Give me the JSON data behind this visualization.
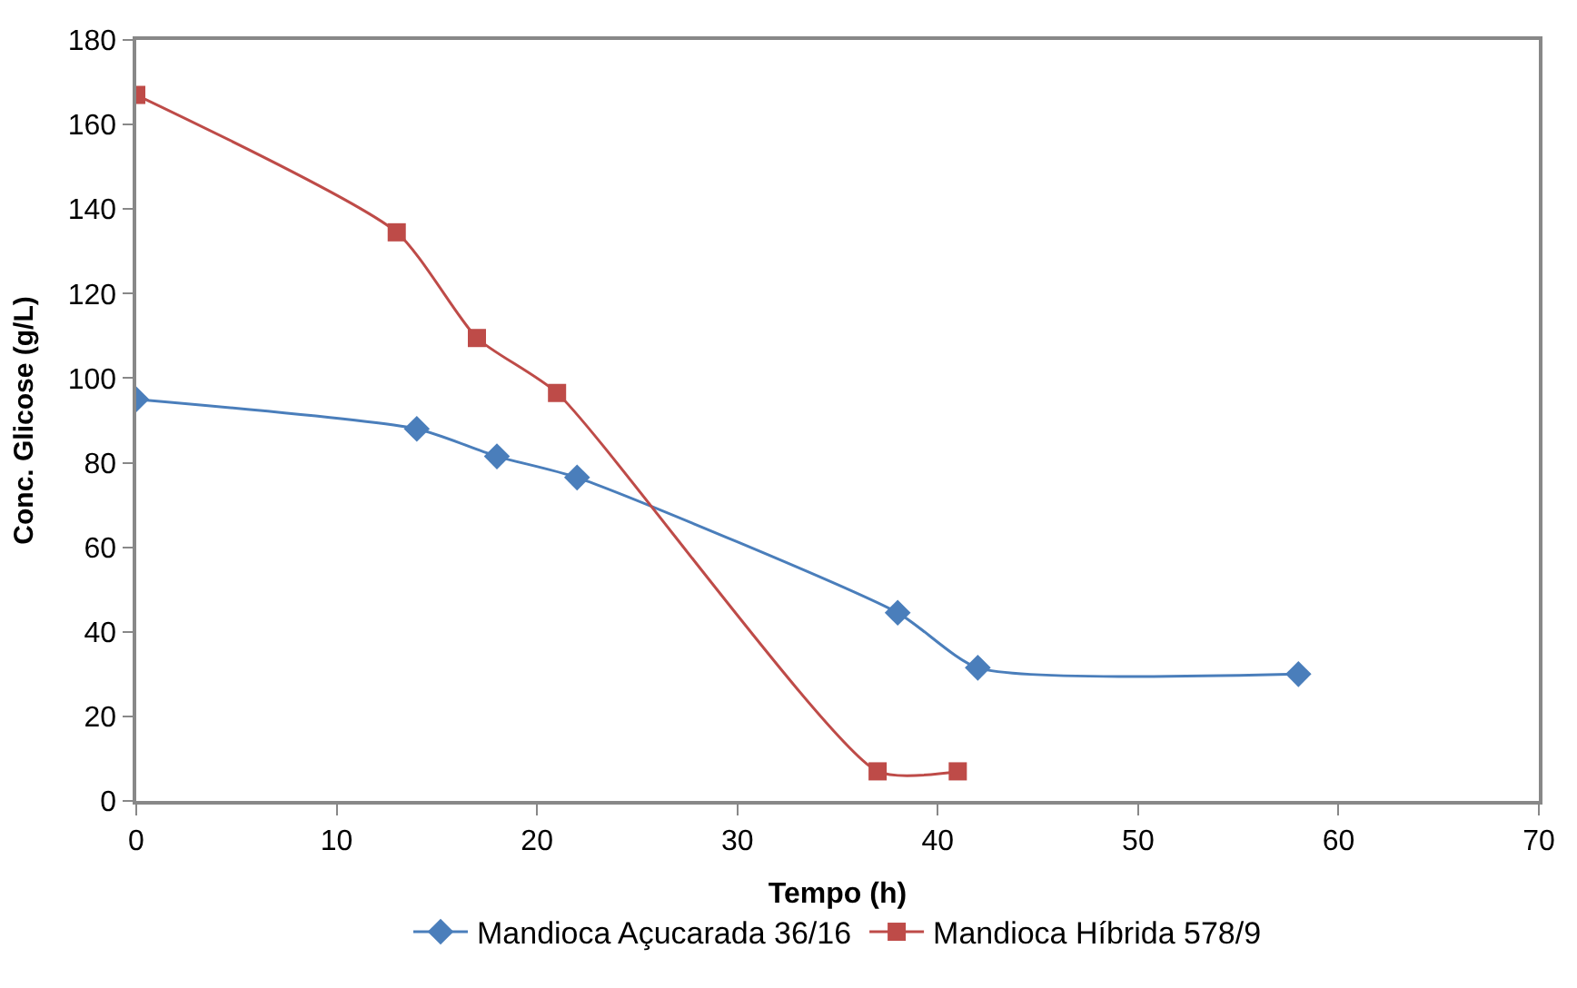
{
  "chart_data": {
    "type": "line",
    "xlabel": "Tempo (h)",
    "ylabel": "Conc. Glicose (g/L)",
    "xlim": [
      0,
      70
    ],
    "xticks": [
      0,
      10,
      20,
      30,
      40,
      50,
      60,
      70
    ],
    "ylim": [
      0,
      180
    ],
    "yticks": [
      0,
      20,
      40,
      60,
      80,
      100,
      120,
      140,
      160,
      180
    ],
    "legend": "bottom",
    "line_style": "solid",
    "series": [
      {
        "name": "Mandioca Açucarada 36/16",
        "color": "#4a7ebb",
        "marker": "diamond",
        "x": [
          0,
          14,
          18,
          22,
          38,
          42,
          58
        ],
        "values": [
          95,
          88,
          81.5,
          76.5,
          44.5,
          31.5,
          30
        ]
      },
      {
        "name": "Mandioca Híbrida 578/9",
        "color": "#be4b48",
        "marker": "square",
        "x": [
          0,
          13,
          17,
          21,
          37,
          41
        ],
        "values": [
          167,
          134.5,
          109.5,
          96.5,
          7,
          7
        ]
      }
    ]
  }
}
